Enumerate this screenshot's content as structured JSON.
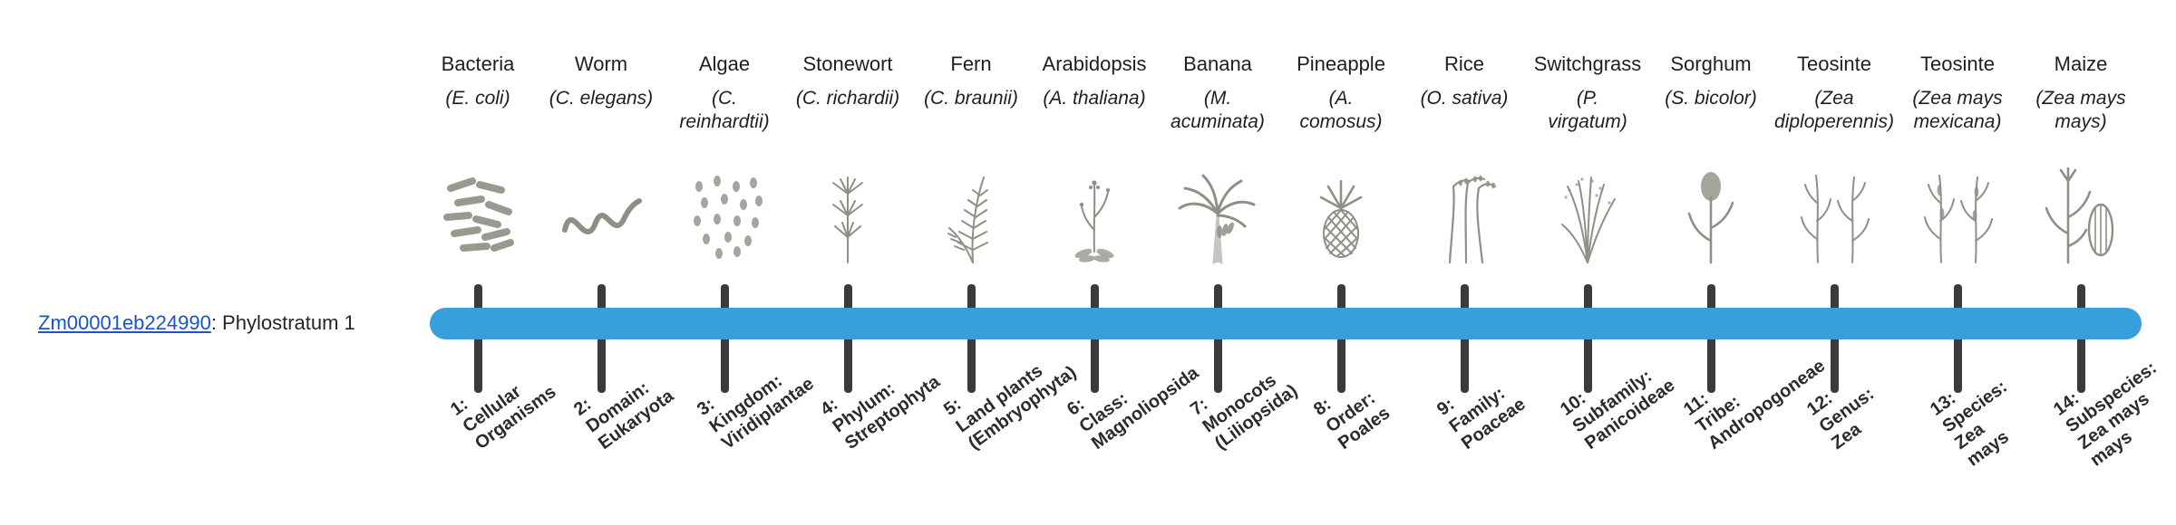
{
  "gene": {
    "id": "Zm00001eb224990",
    "suffix": ": Phylostratum 1"
  },
  "colors": {
    "bar_blue": "#379FDC",
    "link_blue": "#1756C8",
    "tick_dark": "#3A3A3A",
    "text_dark": "#262626",
    "illustration_gray": "#8F8F85"
  },
  "phylostrata": [
    {
      "index": 1,
      "common_name": "Bacteria",
      "scientific_name": "(E. coli)",
      "icon": "bacteria-illustration",
      "stage_label": "1:\nCellular\nOrganisms"
    },
    {
      "index": 2,
      "common_name": "Worm",
      "scientific_name": "(C. elegans)",
      "icon": "worm-illustration",
      "stage_label": "2:\nDomain:\nEukaryota"
    },
    {
      "index": 3,
      "common_name": "Algae",
      "scientific_name": "(C.\nreinhardtii)",
      "icon": "algae-illustration",
      "stage_label": "3:\nKingdom:\nViridiplantae"
    },
    {
      "index": 4,
      "common_name": "Stonewort",
      "scientific_name": "(C. richardii)",
      "icon": "stonewort-illustration",
      "stage_label": "4:\nPhylum:\nStreptophyta"
    },
    {
      "index": 5,
      "common_name": "Fern",
      "scientific_name": "(C. braunii)",
      "icon": "fern-illustration",
      "stage_label": "5:\nLand plants\n(Embryophyta)"
    },
    {
      "index": 6,
      "common_name": "Arabidopsis",
      "scientific_name": "(A. thaliana)",
      "icon": "arabidopsis-illustration",
      "stage_label": "6:\nClass:\nMagnoliopsida"
    },
    {
      "index": 7,
      "common_name": "Banana",
      "scientific_name": "(M.\nacuminata)",
      "icon": "banana-illustration",
      "stage_label": "7:\nMonocots\n(Liliopsida)"
    },
    {
      "index": 8,
      "common_name": "Pineapple",
      "scientific_name": "(A.\ncomosus)",
      "icon": "pineapple-illustration",
      "stage_label": "8:\nOrder:\nPoales"
    },
    {
      "index": 9,
      "common_name": "Rice",
      "scientific_name": "(O. sativa)",
      "icon": "rice-illustration",
      "stage_label": "9:\nFamily:\nPoaceae"
    },
    {
      "index": 10,
      "common_name": "Switchgrass",
      "scientific_name": "(P.\nvirgatum)",
      "icon": "switchgrass-illustration",
      "stage_label": "10:\nSubfamily:\nPanicoideae"
    },
    {
      "index": 11,
      "common_name": "Sorghum",
      "scientific_name": "(S. bicolor)",
      "icon": "sorghum-illustration",
      "stage_label": "11:\nTribe:\nAndropogoneae"
    },
    {
      "index": 12,
      "common_name": "Teosinte",
      "scientific_name": "(Zea\ndiploperennis)",
      "icon": "teosinte-illustration",
      "stage_label": "12:\nGenus:\nZea"
    },
    {
      "index": 13,
      "common_name": "Teosinte",
      "scientific_name": "(Zea mays\nmexicana)",
      "icon": "teosinte-mexicana-illustration",
      "stage_label": "13:\nSpecies:\nZea\nmays"
    },
    {
      "index": 14,
      "common_name": "Maize",
      "scientific_name": "(Zea mays\nmays)",
      "icon": "maize-illustration",
      "stage_label": "14:\nSubspecies:\nZea mays\nmays"
    }
  ]
}
